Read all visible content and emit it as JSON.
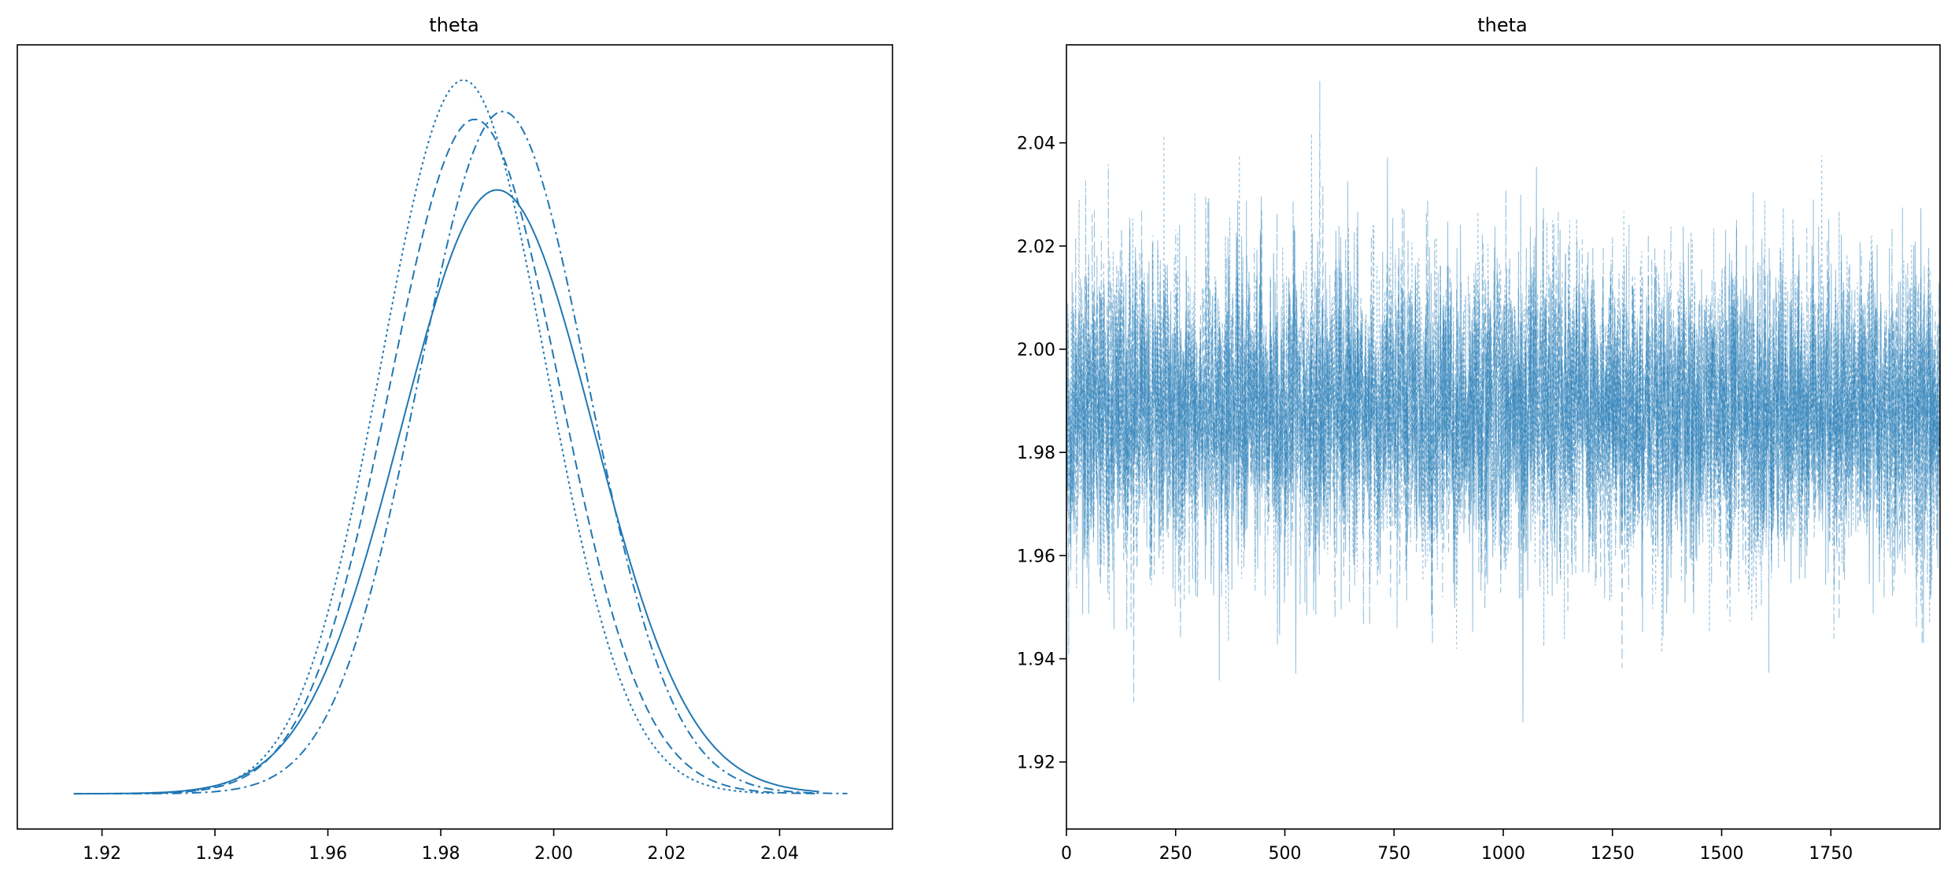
{
  "colors": {
    "series": "#1f77b4",
    "axes": "#000000",
    "background": "#ffffff"
  },
  "chart_data": [
    {
      "type": "line",
      "subtype": "kde",
      "title": "theta",
      "xlim": [
        1.905,
        2.06
      ],
      "xticks": [
        1.92,
        1.94,
        1.96,
        1.98,
        2.0,
        2.02,
        2.04
      ],
      "xtick_labels": [
        "1.92",
        "1.94",
        "1.96",
        "1.98",
        "2.00",
        "2.02",
        "2.04"
      ],
      "yticks_visible": false,
      "grid": false,
      "series": [
        {
          "style": "solid",
          "range": [
            1.915,
            2.047
          ],
          "mu": 1.99,
          "sigma": 0.017,
          "peak": 0.77
        },
        {
          "style": "dashed",
          "range": [
            1.925,
            2.047
          ],
          "mu": 1.986,
          "sigma": 0.015,
          "peak": 0.86
        },
        {
          "style": "dotted",
          "range": [
            1.93,
            2.039
          ],
          "mu": 1.984,
          "sigma": 0.0145,
          "peak": 0.91
        },
        {
          "style": "dashdot",
          "range": [
            1.915,
            2.052
          ],
          "mu": 1.991,
          "sigma": 0.015,
          "peak": 0.87
        }
      ]
    },
    {
      "type": "line",
      "subtype": "trace",
      "title": "theta",
      "xlim": [
        0,
        2000
      ],
      "ylim": [
        1.907,
        2.059
      ],
      "xticks": [
        0,
        250,
        500,
        750,
        1000,
        1250,
        1500,
        1750
      ],
      "xtick_labels": [
        "0",
        "250",
        "500",
        "750",
        "1000",
        "1250",
        "1500",
        "1750"
      ],
      "yticks": [
        1.92,
        1.94,
        1.96,
        1.98,
        2.0,
        2.02,
        2.04
      ],
      "ytick_labels": [
        "1.92",
        "1.94",
        "1.96",
        "1.98",
        "2.00",
        "2.02",
        "2.04"
      ],
      "grid": false,
      "chains": 4,
      "draws_per_chain": 2000,
      "mean": 1.988,
      "sd": 0.015,
      "min": 1.915,
      "max": 2.052
    }
  ]
}
